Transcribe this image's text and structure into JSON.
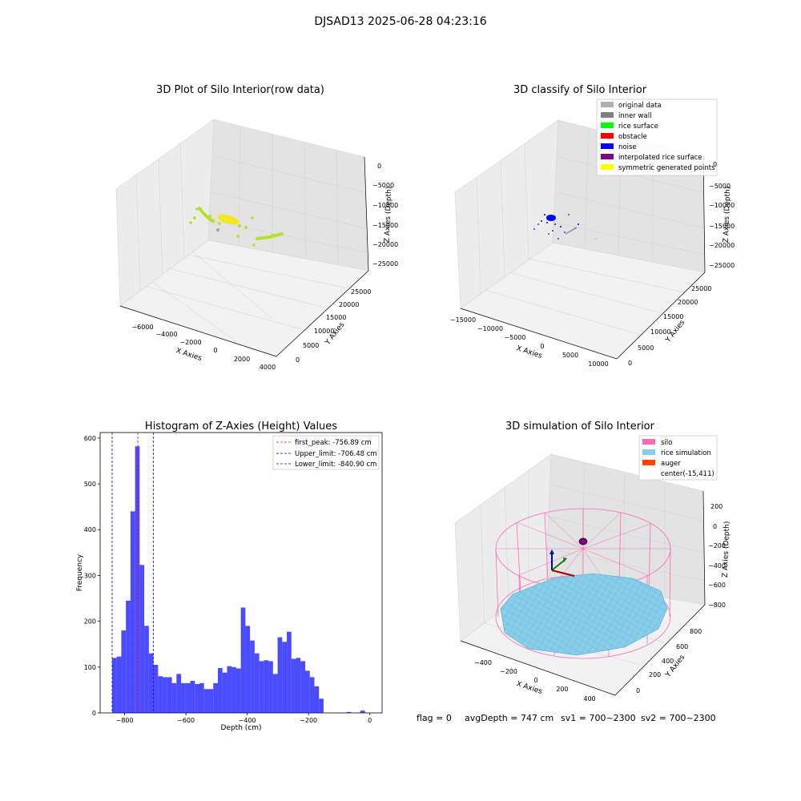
{
  "suptitle": "DJSAD13 2025-06-28 04:23:16",
  "status": {
    "flag": "flag = 0",
    "avg_depth": "avgDepth = 747 cm",
    "sv1": "sv1 = 700~2300",
    "sv2": "sv2 = 700~2300"
  },
  "chart_data": [
    {
      "type": "scatter",
      "title": "3D Plot of Silo Interior(row data)",
      "xlabel": "X Axies",
      "ylabel": "Y Axies",
      "zlabel": "Z Axies (Depth)",
      "x_ticks": [
        "−6000",
        "−4000",
        "−2000",
        "0",
        "2000",
        "4000"
      ],
      "y_ticks": [
        "0",
        "5000",
        "10000",
        "15000",
        "20000",
        "25000"
      ],
      "z_ticks": [
        "0",
        "−5000",
        "−10000",
        "−15000",
        "−20000",
        "−25000"
      ],
      "colors": {
        "points": "#b5e02c",
        "dense": "#f4e81a",
        "gray_point": "#b39ab3"
      }
    },
    {
      "type": "scatter",
      "title": "3D classify of Silo Interior",
      "xlabel": "X Axies",
      "ylabel": "Y Axies",
      "zlabel": "Z Axies (Depth)",
      "x_ticks": [
        "−15000",
        "−10000",
        "−5000",
        "0",
        "5000",
        "10000"
      ],
      "y_ticks": [
        "0",
        "5000",
        "10000",
        "15000",
        "20000",
        "25000"
      ],
      "z_ticks": [
        "0",
        "−5000",
        "−10000",
        "−15000",
        "−20000",
        "−25000"
      ],
      "legend": [
        {
          "label": "original data",
          "color": "#b0b0b0"
        },
        {
          "label": "inner wall",
          "color": "#808080"
        },
        {
          "label": "rice surface",
          "color": "#00ff00"
        },
        {
          "label": "obstacle",
          "color": "#ff0000"
        },
        {
          "label": "noise",
          "color": "#0000ff"
        },
        {
          "label": "interpolated rice surface",
          "color": "#800080"
        },
        {
          "label": "symmetric generated points",
          "color": "#ffff00"
        }
      ]
    },
    {
      "type": "bar",
      "title": "Histogram of Z-Axies (Height) Values",
      "xlabel": "Depth (cm)",
      "ylabel": "Frequency",
      "xlim": [
        -880,
        40
      ],
      "ylim": [
        0,
        612
      ],
      "x_ticks": [
        -800,
        -600,
        -400,
        -200,
        0
      ],
      "x_tick_labels": [
        "−800",
        "−600",
        "−400",
        "−200",
        "0"
      ],
      "y_ticks": [
        0,
        100,
        200,
        300,
        400,
        500,
        600
      ],
      "bin_start": -840.9,
      "bin_width": 15.0,
      "values": [
        120,
        123,
        180,
        245,
        440,
        582,
        323,
        190,
        130,
        105,
        80,
        78,
        78,
        65,
        85,
        65,
        65,
        70,
        63,
        65,
        52,
        52,
        65,
        98,
        88,
        102,
        100,
        97,
        230,
        190,
        158,
        130,
        113,
        115,
        113,
        85,
        165,
        155,
        177,
        118,
        120,
        113,
        92,
        78,
        58,
        31,
        0,
        0,
        0,
        0,
        0,
        2,
        0,
        0,
        5
      ],
      "bar_color": "#0000ff",
      "vlines": [
        {
          "label": "first_peak: -756.89 cm",
          "x": -756.89,
          "color": "#ff0000"
        },
        {
          "label": "Upper_limit: -706.48 cm",
          "x": -706.48,
          "color": "#0000ff"
        },
        {
          "label": "Lower_limit: -840.90 cm",
          "x": -840.9,
          "color": "#0000ff"
        }
      ]
    },
    {
      "type": "scatter",
      "title": "3D simulation of Silo Interior",
      "xlabel": "X Axies",
      "ylabel": "Y Axies",
      "zlabel": "Z Axies (Depth)",
      "x_ticks": [
        "−400",
        "−200",
        "0",
        "200",
        "400"
      ],
      "y_ticks": [
        "0",
        "200",
        "400",
        "600",
        "800"
      ],
      "z_ticks": [
        "200",
        "0",
        "−200",
        "−400",
        "−600",
        "−800"
      ],
      "legend": [
        {
          "label": "silo",
          "color": "#ff69b4"
        },
        {
          "label": "rice simulation",
          "color": "#87ceeb"
        },
        {
          "label": "auger",
          "color": "#ff4500"
        },
        {
          "label": "center(-15,411)",
          "color": ""
        }
      ]
    }
  ]
}
